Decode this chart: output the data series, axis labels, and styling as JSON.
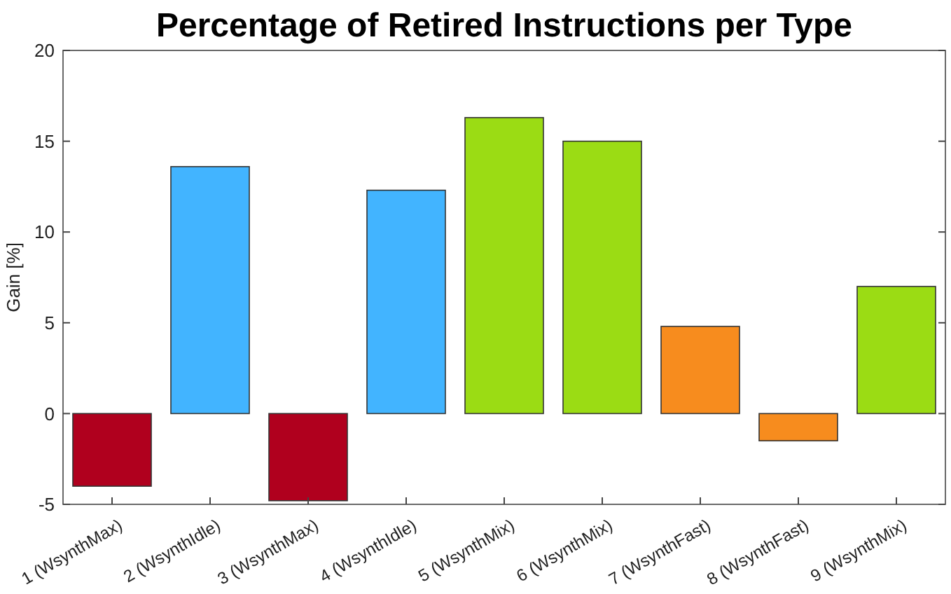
{
  "chart_data": {
    "type": "bar",
    "title": "Percentage of Retired Instructions per Type",
    "ylabel": "Gain [%]",
    "categories": [
      "1 (WsynthMax)",
      "2 (WsynthIdle)",
      "3 (WsynthMax)",
      "4 (WsynthIdle)",
      "5 (WsynthMix)",
      "6 (WsynthMix)",
      "7 (WsynthFast)",
      "8 (WsynthFast)",
      "9 (WsynthMix)"
    ],
    "values": [
      -4.0,
      13.6,
      -4.8,
      12.3,
      16.3,
      15.0,
      4.8,
      -1.5,
      7.0
    ],
    "colors": [
      "#b0001e",
      "#42b4ff",
      "#b0001e",
      "#42b4ff",
      "#9bdc14",
      "#9bdc14",
      "#f78c1e",
      "#f78c1e",
      "#9bdc14"
    ],
    "ylim": [
      -5,
      20
    ],
    "yticks": [
      -5,
      0,
      5,
      10,
      15,
      20
    ],
    "grid": false
  }
}
